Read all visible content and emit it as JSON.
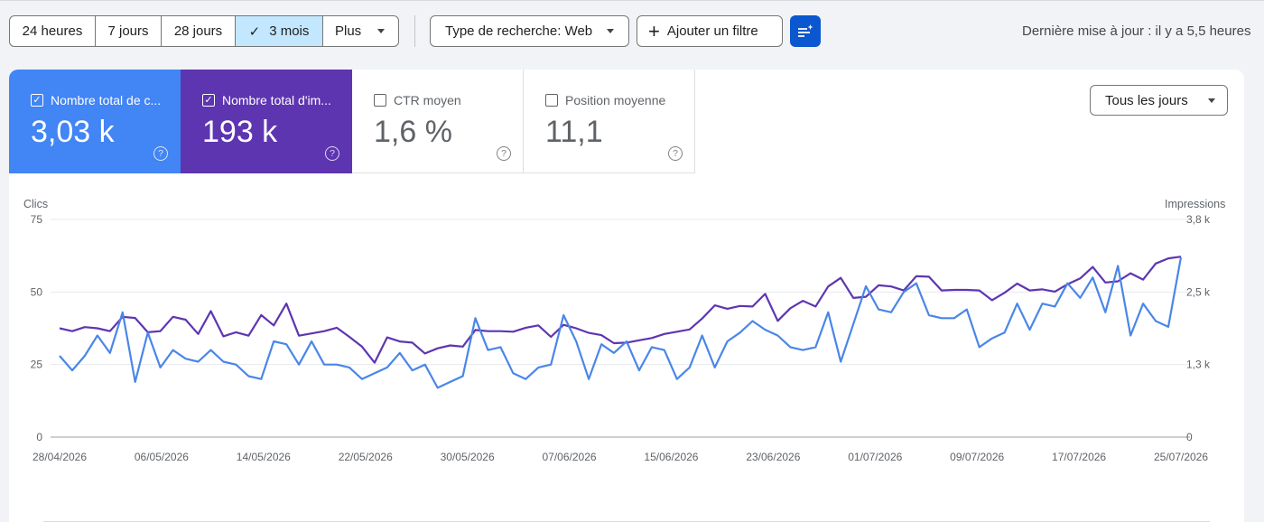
{
  "toolbar": {
    "ranges": [
      "24 heures",
      "7 jours",
      "28 jours",
      "3 mois",
      "Plus"
    ],
    "selected_range": "3 mois",
    "search_type": "Type de recherche: Web",
    "add_filter": "Ajouter un filtre",
    "last_update": "Dernière mise à jour : il y a 5,5 heures"
  },
  "metrics": [
    {
      "label": "Nombre total de c...",
      "value": "3,03 k",
      "checked": true,
      "color": "#4285f4"
    },
    {
      "label": "Nombre total d'im...",
      "value": "193 k",
      "checked": true,
      "color": "#5e35b1"
    },
    {
      "label": "CTR moyen",
      "value": "1,6 %",
      "checked": false
    },
    {
      "label": "Position moyenne",
      "value": "11,1",
      "checked": false
    }
  ],
  "days_select": "Tous les jours",
  "chart_data": {
    "type": "line",
    "xlabel": "",
    "ylabel_left": "Clics",
    "ylabel_right": "Impressions",
    "left_ticks": [
      "75",
      "50",
      "25",
      "0"
    ],
    "right_ticks": [
      "3,8 k",
      "2,5 k",
      "1,3 k",
      "0"
    ],
    "ylim_left": [
      0,
      75
    ],
    "ylim_right": [
      0,
      3800
    ],
    "x_tick_labels": [
      "28/04/2026",
      "06/05/2026",
      "14/05/2026",
      "22/05/2026",
      "30/05/2026",
      "07/06/2026",
      "15/06/2026",
      "23/06/2026",
      "01/07/2026",
      "09/07/2026",
      "17/07/2026",
      "25/07/2026"
    ],
    "x_start": "2026-04-28",
    "x_end": "2026-07-25",
    "grid": true,
    "series": [
      {
        "name": "Clics",
        "axis": "left",
        "color": "#4a86e8",
        "values": [
          28,
          23,
          28,
          35,
          29,
          43,
          19,
          36,
          24,
          30,
          27,
          26,
          30,
          26,
          25,
          21,
          20,
          33,
          32,
          25,
          33,
          25,
          25,
          24,
          20,
          22,
          24,
          29,
          23,
          25,
          17,
          19,
          21,
          41,
          30,
          31,
          22,
          20,
          24,
          25,
          42,
          33,
          20,
          32,
          29,
          33,
          23,
          31,
          30,
          20,
          24,
          35,
          24,
          33,
          36,
          40,
          37,
          35,
          31,
          30,
          31,
          43,
          26,
          39,
          52,
          44,
          43,
          50,
          53,
          42,
          41,
          41,
          44,
          31,
          34,
          36,
          46,
          37,
          46,
          45,
          53,
          48,
          55,
          43,
          59,
          35,
          46,
          40,
          38,
          62
        ]
      },
      {
        "name": "Impressions",
        "axis": "right",
        "color": "#5e35b1",
        "values": [
          1900,
          1850,
          1920,
          1900,
          1850,
          2100,
          2080,
          1830,
          1850,
          2100,
          2050,
          1800,
          2200,
          1760,
          1830,
          1770,
          2130,
          1950,
          2330,
          1770,
          1810,
          1850,
          1910,
          1750,
          1580,
          1300,
          1740,
          1670,
          1650,
          1460,
          1550,
          1600,
          1580,
          1870,
          1850,
          1850,
          1840,
          1910,
          1950,
          1750,
          1960,
          1900,
          1820,
          1780,
          1640,
          1650,
          1690,
          1730,
          1800,
          1840,
          1880,
          2070,
          2300,
          2240,
          2290,
          2280,
          2500,
          2030,
          2250,
          2380,
          2280,
          2630,
          2780,
          2430,
          2450,
          2650,
          2630,
          2560,
          2810,
          2800,
          2560,
          2570,
          2570,
          2560,
          2390,
          2520,
          2680,
          2560,
          2580,
          2540,
          2670,
          2770,
          2970,
          2700,
          2720,
          2860,
          2750,
          3030,
          3120,
          3150
        ]
      }
    ]
  }
}
